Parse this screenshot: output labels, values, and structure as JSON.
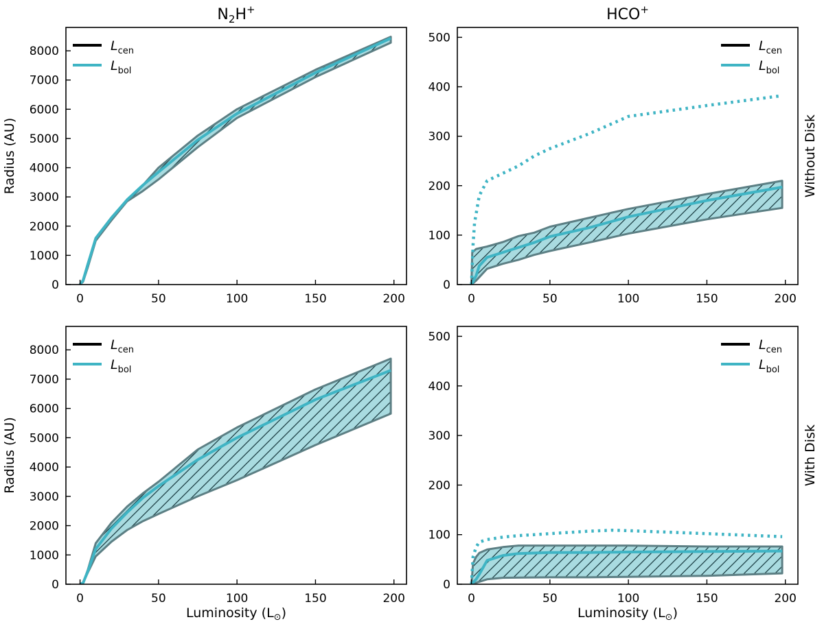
{
  "figure": {
    "column_titles": [
      {
        "base": "N",
        "sub": "2",
        "mid": "H",
        "sup": "+"
      },
      {
        "base": "HCO",
        "sup": "+"
      }
    ],
    "row_labels": [
      "Without Disk",
      "With Disk"
    ],
    "ylabel": "Radius (AU)",
    "xlabel": "Luminosity (L",
    "xlabel_suffix": ")",
    "legend": [
      {
        "main": "L",
        "sub": "cen",
        "color": "#000000"
      },
      {
        "main": "L",
        "sub": "bol",
        "color": "#3fb4c4"
      }
    ],
    "colors": {
      "line": "#3fb4c4",
      "band_fill": "#a9dbe0",
      "band_edge": "#5c7f84",
      "hatch": "#1d3f44",
      "legend_black": "#000000"
    }
  },
  "chart_data": [
    {
      "type": "area",
      "panel": "N2H+ without disk",
      "xlim": [
        -9,
        208
      ],
      "ylim": [
        0,
        8800
      ],
      "xticks": [
        0,
        50,
        100,
        150,
        200
      ],
      "yticks": [
        0,
        1000,
        2000,
        3000,
        4000,
        5000,
        6000,
        7000,
        8000
      ],
      "ylabel": "Radius (AU)",
      "xlabel": "",
      "grid": false,
      "legend_position": "top-left",
      "band": {
        "upper": [
          [
            0,
            0
          ],
          [
            2,
            150
          ],
          [
            5,
            700
          ],
          [
            10,
            1600
          ],
          [
            20,
            2300
          ],
          [
            30,
            2900
          ],
          [
            40,
            3400
          ],
          [
            50,
            4000
          ],
          [
            75,
            5100
          ],
          [
            100,
            6000
          ],
          [
            150,
            7350
          ],
          [
            198,
            8480
          ]
        ],
        "lower": [
          [
            0,
            0
          ],
          [
            2,
            100
          ],
          [
            5,
            600
          ],
          [
            10,
            1500
          ],
          [
            20,
            2200
          ],
          [
            30,
            2850
          ],
          [
            40,
            3200
          ],
          [
            50,
            3600
          ],
          [
            75,
            4700
          ],
          [
            100,
            5700
          ],
          [
            150,
            7100
          ],
          [
            198,
            8280
          ]
        ]
      },
      "series": [
        {
          "name": "L_bol",
          "style": "solid",
          "points": [
            [
              0,
              0
            ],
            [
              2,
              150
            ],
            [
              5,
              700
            ],
            [
              10,
              1580
            ],
            [
              20,
              2280
            ],
            [
              30,
              2900
            ],
            [
              40,
              3400
            ],
            [
              50,
              3850
            ],
            [
              75,
              4950
            ],
            [
              100,
              5850
            ],
            [
              150,
              7250
            ],
            [
              198,
              8430
            ]
          ]
        }
      ]
    },
    {
      "type": "area",
      "panel": "HCO+ without disk",
      "xlim": [
        -9,
        208
      ],
      "ylim": [
        0,
        520
      ],
      "xticks": [
        0,
        50,
        100,
        150,
        200
      ],
      "yticks": [
        0,
        100,
        200,
        300,
        400,
        500
      ],
      "row_label": "Without Disk",
      "grid": false,
      "legend_position": "top-right",
      "band": {
        "upper": [
          [
            0,
            0
          ],
          [
            0.5,
            65
          ],
          [
            3,
            72
          ],
          [
            10,
            77
          ],
          [
            20,
            86
          ],
          [
            30,
            98
          ],
          [
            40,
            105
          ],
          [
            50,
            117
          ],
          [
            75,
            135
          ],
          [
            100,
            153
          ],
          [
            150,
            183
          ],
          [
            198,
            210
          ]
        ],
        "lower": [
          [
            0,
            0
          ],
          [
            3,
            8
          ],
          [
            10,
            32
          ],
          [
            20,
            42
          ],
          [
            30,
            50
          ],
          [
            40,
            60
          ],
          [
            50,
            68
          ],
          [
            75,
            85
          ],
          [
            100,
            103
          ],
          [
            150,
            132
          ],
          [
            198,
            155
          ]
        ]
      },
      "series": [
        {
          "name": "L_bol",
          "style": "solid",
          "points": [
            [
              0,
              0
            ],
            [
              3,
              18
            ],
            [
              5,
              38
            ],
            [
              10,
              55
            ],
            [
              20,
              65
            ],
            [
              30,
              75
            ],
            [
              40,
              85
            ],
            [
              50,
              97
            ],
            [
              75,
              115
            ],
            [
              100,
              137
            ],
            [
              150,
              170
            ],
            [
              198,
              197
            ]
          ]
        },
        {
          "style": "dotted",
          "points": [
            [
              0,
              0
            ],
            [
              1,
              80
            ],
            [
              2,
              125
            ],
            [
              5,
              180
            ],
            [
              10,
              210
            ],
            [
              20,
              225
            ],
            [
              30,
              240
            ],
            [
              40,
              260
            ],
            [
              50,
              275
            ],
            [
              75,
              305
            ],
            [
              100,
              340
            ],
            [
              150,
              362
            ],
            [
              198,
              382
            ]
          ]
        }
      ]
    },
    {
      "type": "area",
      "panel": "N2H+ with disk",
      "xlim": [
        -9,
        208
      ],
      "ylim": [
        0,
        8800
      ],
      "xticks": [
        0,
        50,
        100,
        150,
        200
      ],
      "yticks": [
        0,
        1000,
        2000,
        3000,
        4000,
        5000,
        6000,
        7000,
        8000
      ],
      "ylabel": "Radius (AU)",
      "xlabel": "Luminosity (L⊙)",
      "grid": false,
      "legend_position": "top-left",
      "band": {
        "upper": [
          [
            0,
            0
          ],
          [
            2,
            50
          ],
          [
            5,
            500
          ],
          [
            10,
            1400
          ],
          [
            20,
            2100
          ],
          [
            30,
            2650
          ],
          [
            40,
            3100
          ],
          [
            50,
            3500
          ],
          [
            75,
            4600
          ],
          [
            100,
            5350
          ],
          [
            150,
            6650
          ],
          [
            198,
            7700
          ]
        ],
        "lower": [
          [
            0,
            0
          ],
          [
            2,
            50
          ],
          [
            5,
            400
          ],
          [
            10,
            950
          ],
          [
            20,
            1450
          ],
          [
            30,
            1850
          ],
          [
            40,
            2150
          ],
          [
            50,
            2400
          ],
          [
            75,
            3000
          ],
          [
            100,
            3550
          ],
          [
            150,
            4750
          ],
          [
            198,
            5820
          ]
        ]
      },
      "series": [
        {
          "name": "L_bol",
          "style": "solid",
          "points": [
            [
              0,
              0
            ],
            [
              2,
              50
            ],
            [
              5,
              450
            ],
            [
              10,
              1200
            ],
            [
              20,
              1900
            ],
            [
              30,
              2450
            ],
            [
              40,
              2950
            ],
            [
              50,
              3350
            ],
            [
              75,
              4250
            ],
            [
              100,
              5000
            ],
            [
              150,
              6300
            ],
            [
              198,
              7300
            ]
          ]
        }
      ]
    },
    {
      "type": "area",
      "panel": "HCO+ with disk",
      "xlim": [
        -9,
        208
      ],
      "ylim": [
        0,
        520
      ],
      "xticks": [
        0,
        50,
        100,
        150,
        200
      ],
      "yticks": [
        0,
        100,
        200,
        300,
        400,
        500
      ],
      "xlabel": "Luminosity (L⊙)",
      "row_label": "With Disk",
      "grid": false,
      "legend_position": "top-right",
      "band": {
        "upper": [
          [
            0,
            0
          ],
          [
            1,
            42
          ],
          [
            3,
            55
          ],
          [
            5,
            63
          ],
          [
            10,
            70
          ],
          [
            20,
            75
          ],
          [
            30,
            78
          ],
          [
            50,
            78
          ],
          [
            75,
            78
          ],
          [
            100,
            78
          ],
          [
            150,
            76
          ],
          [
            198,
            76
          ]
        ],
        "lower": [
          [
            0,
            0
          ],
          [
            5,
            5
          ],
          [
            10,
            10
          ],
          [
            20,
            13
          ],
          [
            50,
            14
          ],
          [
            75,
            14
          ],
          [
            100,
            15
          ],
          [
            150,
            17
          ],
          [
            198,
            22
          ]
        ]
      },
      "series": [
        {
          "name": "L_bol",
          "style": "solid",
          "points": [
            [
              0,
              0
            ],
            [
              3,
              10
            ],
            [
              5,
              20
            ],
            [
              10,
              48
            ],
            [
              20,
              58
            ],
            [
              30,
              62
            ],
            [
              50,
              64
            ],
            [
              75,
              64
            ],
            [
              100,
              65
            ],
            [
              150,
              66
            ],
            [
              198,
              67
            ]
          ]
        },
        {
          "style": "dotted",
          "points": [
            [
              0,
              0
            ],
            [
              1,
              55
            ],
            [
              3,
              75
            ],
            [
              5,
              85
            ],
            [
              10,
              90
            ],
            [
              20,
              95
            ],
            [
              30,
              98
            ],
            [
              40,
              100
            ],
            [
              50,
              102
            ],
            [
              75,
              107
            ],
            [
              90,
              109
            ],
            [
              100,
              108
            ],
            [
              150,
              102
            ],
            [
              198,
              96
            ]
          ]
        }
      ]
    }
  ]
}
